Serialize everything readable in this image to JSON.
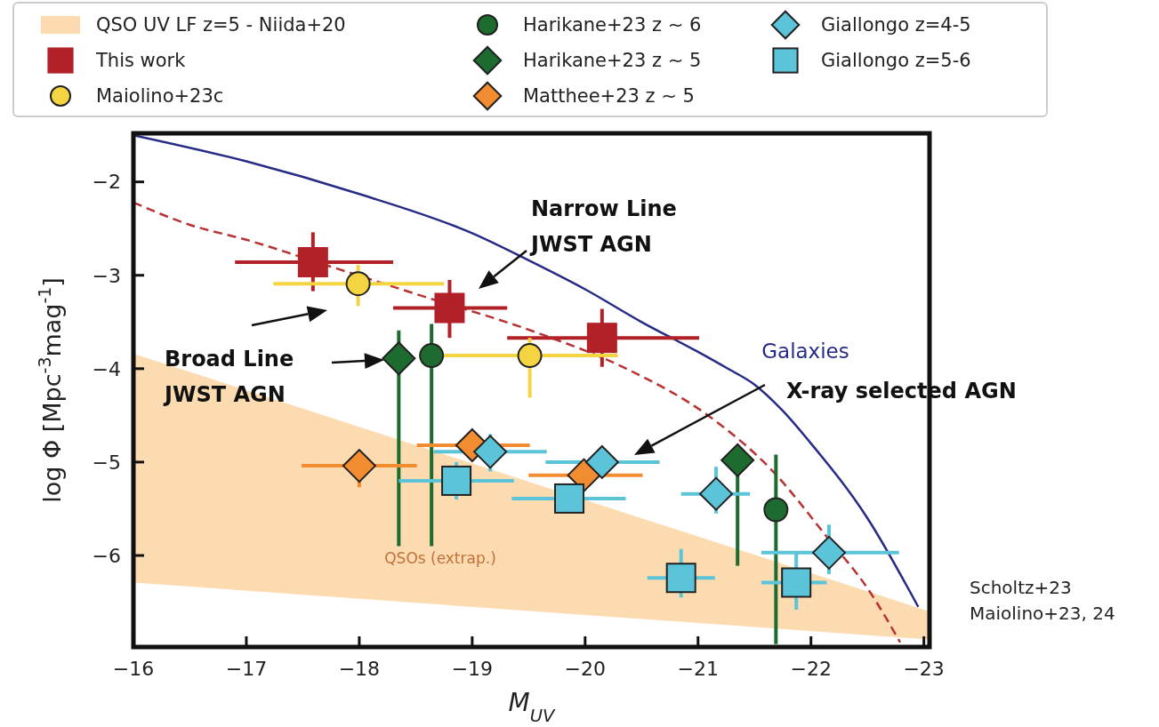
{
  "chart_data": {
    "type": "scatter",
    "xlabel": "M$_{UV}$",
    "ylabel": "log Φ  [Mpc$^{-3}$mag$^{-1}$]",
    "xlim": [
      -16,
      -23.05
    ],
    "ylim": [
      -6.98,
      -1.48
    ],
    "xticks": [
      -16,
      -17,
      -18,
      -19,
      -20,
      -21,
      -22,
      -23
    ],
    "yticks": [
      -2,
      -3,
      -4,
      -5,
      -6
    ],
    "grid": false,
    "legend": "top",
    "series": [
      {
        "name": "QSO UV LF z=5 - Niida+20",
        "type": "area",
        "color": "#fddbb0",
        "x": [
          -16,
          -23.05
        ],
        "values": [
          null,
          null
        ],
        "lower": [
          -6.29,
          -6.9
        ],
        "upper": [
          -3.84,
          -6.6
        ]
      },
      {
        "type": "line",
        "color": "#b83232",
        "line_style": "dashed",
        "x": [
          -16,
          -16.5,
          -17,
          -17.73,
          -18.5,
          -19.54,
          -20.33,
          -21.11,
          -21.64,
          -22.16,
          -22.5,
          -22.79
        ],
        "values": [
          -2.22,
          -2.46,
          -2.62,
          -2.9,
          -3.2,
          -3.6,
          -3.98,
          -4.52,
          -5.07,
          -5.83,
          -6.35,
          -6.93
        ]
      },
      {
        "name": "Galaxies",
        "type": "line",
        "color": "#262b85",
        "line_style": "solid",
        "x": [
          -16,
          -17,
          -18,
          -19,
          -19.5,
          -20,
          -20.5,
          -21,
          -21.25,
          -21.5,
          -21.75,
          -22,
          -22.5,
          -22.95
        ],
        "values": [
          -1.5,
          -1.78,
          -2.13,
          -2.55,
          -2.84,
          -3.15,
          -3.5,
          -3.82,
          -3.99,
          -4.17,
          -4.45,
          -4.8,
          -5.6,
          -6.55
        ]
      },
      {
        "name": "This work",
        "type": "scatter",
        "marker": "square",
        "color": "#b22028",
        "x": [
          -17.59,
          -18.8,
          -20.15
        ],
        "values": [
          -2.86,
          -3.35,
          -3.67
        ],
        "errors": [
          [
            -3.17,
            -2.54
          ],
          [
            -3.67,
            -3.05
          ],
          [
            -3.98,
            -3.36
          ]
        ],
        "xerrors": [
          [
            -18.3,
            -16.9
          ],
          [
            -19.31,
            -18.3
          ],
          [
            -21.01,
            -19.31
          ]
        ]
      },
      {
        "name": "Maiolino+23c",
        "marker": "circle",
        "color": "#f5d442",
        "x": [
          -17.99,
          -19.51
        ],
        "values": [
          -3.09,
          -3.86
        ],
        "errors": [
          [
            -3.33,
            -2.89
          ],
          [
            -4.31,
            -3.67
          ]
        ],
        "xerrors": [
          [
            -18.75,
            -17.24
          ],
          [
            -20.29,
            -18.75
          ]
        ]
      },
      {
        "name": "Harikane+23 z ∼ 6",
        "marker": "circle",
        "color": "#1e6b30",
        "x": [
          -18.64,
          -21.69
        ],
        "values": [
          -3.86,
          -5.51
        ],
        "errors": [
          [
            -5.9,
            -3.52
          ],
          [
            -6.95,
            -4.92
          ]
        ]
      },
      {
        "name": "Harikane+23 z ∼ 5",
        "marker": "diamond",
        "color": "#1e6b30",
        "x": [
          -18.35,
          -21.35
        ],
        "values": [
          -3.89,
          -4.98
        ],
        "errors": [
          [
            -5.9,
            -3.59
          ],
          [
            -6.11,
            -4.98
          ]
        ]
      },
      {
        "name": "Matthee+23 z ∼ 5",
        "marker": "diamond",
        "color": "#f28c30",
        "x": [
          -18.0,
          -19.0,
          -19.99
        ],
        "values": [
          -5.04,
          -4.82,
          -5.14
        ],
        "errors": [
          [
            -5.27,
            -4.91
          ],
          [
            -4.92,
            -4.72
          ],
          [
            -5.24,
            -5.04
          ]
        ],
        "xerrors": [
          [
            -18.51,
            -17.49
          ],
          [
            -19.51,
            -18.51
          ],
          [
            -20.51,
            -19.5
          ]
        ]
      },
      {
        "name": "Giallongo z=4-5",
        "marker": "diamond",
        "color": "#5bc4d8",
        "x": [
          -19.16,
          -20.15,
          -21.16,
          -22.16
        ],
        "values": [
          -4.89,
          -5.0,
          -5.34,
          -5.97
        ],
        "errors": [
          [
            -5.1,
            -4.7
          ],
          [
            -5.1,
            -4.9
          ],
          [
            -5.55,
            -5.05
          ],
          [
            -6.2,
            -5.67
          ]
        ],
        "xerrors": [
          [
            -19.66,
            -18.66
          ],
          [
            -20.66,
            -19.65
          ],
          [
            -21.46,
            -20.85
          ],
          [
            -22.78,
            -21.56
          ]
        ]
      },
      {
        "name": "Giallongo z=5-6",
        "marker": "square",
        "color": "#5bc4d8",
        "x": [
          -18.86,
          -19.86,
          -20.85,
          -21.87
        ],
        "values": [
          -5.2,
          -5.39,
          -6.24,
          -6.29
        ],
        "errors": [
          [
            -5.4,
            -5.0
          ],
          [
            -5.5,
            -5.25
          ],
          [
            -6.45,
            -5.93
          ],
          [
            -6.58,
            -5.96
          ]
        ],
        "xerrors": [
          [
            -19.37,
            -18.35
          ],
          [
            -20.36,
            -19.35
          ],
          [
            -21.15,
            -20.55
          ],
          [
            -22.14,
            -21.56
          ]
        ]
      }
    ],
    "annotations": [
      "Narrow Line\nJWST AGN",
      "Broad Line\nJWST AGN",
      "X-ray selected AGN",
      "QSOs (extrap.)",
      "Scholtz+23\nMaiolino+23, 24"
    ]
  }
}
